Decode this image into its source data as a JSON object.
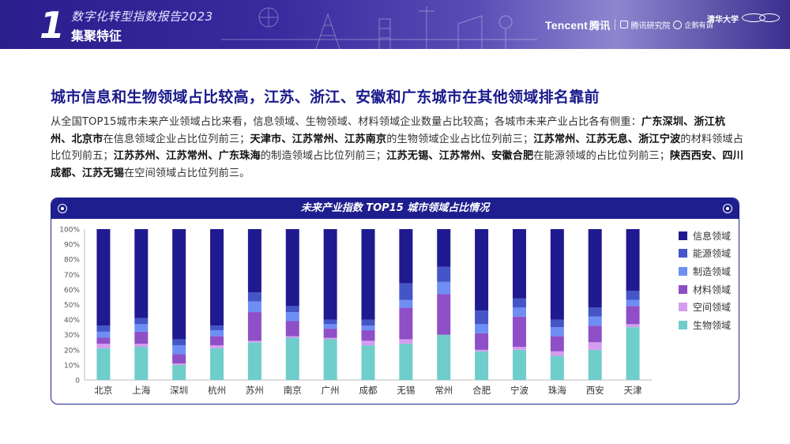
{
  "header": {
    "chapter_number": "1",
    "report_title": "数字化转型指数报告2023",
    "section_title": "集聚特征",
    "logos": {
      "tencent": "Tencent",
      "tencent_cn": "腾讯",
      "research": "腾讯研究院",
      "qie": "企鹅有调",
      "tsinghua": "清华大学"
    }
  },
  "headline": "城市信息和生物领域占比较高，江苏、浙江、安徽和广东城市在其他领域排名靠前",
  "body_segments": [
    {
      "text": "从全国TOP15城市未来产业领域占比来看，信息领域、生物领域、材料领域企业数量占比较高；各城市未来产业占比各有侧重：",
      "bold": false
    },
    {
      "text": "广东深圳、浙江杭州、北京市",
      "bold": true
    },
    {
      "text": "在信息领域企业占比位列前三；",
      "bold": false
    },
    {
      "text": "天津市、江苏常州、江苏南京",
      "bold": true
    },
    {
      "text": "的生物领域企业占比位列前三；",
      "bold": false
    },
    {
      "text": "江苏常州、江苏无息、浙江宁波",
      "bold": true
    },
    {
      "text": "的材料领域占比位列前五；",
      "bold": false
    },
    {
      "text": "江苏苏州、江苏常州、广东珠海",
      "bold": true
    },
    {
      "text": "的制造领域占比位列前三；",
      "bold": false
    },
    {
      "text": "江苏无锡、江苏常州、安徽合肥",
      "bold": true
    },
    {
      "text": "在能源领域的占比位列前三；",
      "bold": false
    },
    {
      "text": "陕西西安、四川成都、江苏无锡",
      "bold": true
    },
    {
      "text": "在空间领域占比位列前三。",
      "bold": false
    }
  ],
  "chart_data": {
    "type": "bar",
    "stacked": true,
    "title": "未来产业指数 TOP15 城市领域占比情况",
    "categories": [
      "北京",
      "上海",
      "深圳",
      "杭州",
      "苏州",
      "南京",
      "广州",
      "成都",
      "无锡",
      "常州",
      "合肥",
      "宁波",
      "珠海",
      "西安",
      "天津"
    ],
    "y_ticks": [
      "0",
      "10%",
      "20%",
      "30%",
      "40%",
      "50%",
      "60%",
      "70%",
      "80%",
      "90%",
      "100%"
    ],
    "ylim": [
      0,
      100
    ],
    "series_order_bottom_to_top": [
      "生物领域",
      "空间领域",
      "材料领域",
      "制造领域",
      "能源领域",
      "信息领域"
    ],
    "series": [
      {
        "name": "生物领域",
        "color": "#6fcdcc",
        "values": [
          21,
          22,
          10,
          21,
          25,
          28,
          27,
          23,
          24,
          30,
          19,
          20,
          16,
          20,
          35
        ]
      },
      {
        "name": "空间领域",
        "color": "#d59cf0",
        "values": [
          3,
          2,
          1,
          2,
          1,
          1,
          1,
          3,
          3,
          0,
          1,
          2,
          3,
          5,
          2
        ]
      },
      {
        "name": "材料领域",
        "color": "#8e4fc7",
        "values": [
          4,
          8,
          6,
          6,
          19,
          10,
          6,
          7,
          21,
          27,
          11,
          20,
          10,
          11,
          12
        ]
      },
      {
        "name": "制造领域",
        "color": "#6e8ef4",
        "values": [
          4,
          5,
          6,
          4,
          7,
          6,
          3,
          3,
          5,
          8,
          6,
          6,
          6,
          6,
          4
        ]
      },
      {
        "name": "能源领域",
        "color": "#4555c8",
        "values": [
          4,
          4,
          4,
          3,
          6,
          4,
          3,
          4,
          11,
          10,
          9,
          6,
          5,
          6,
          6
        ]
      },
      {
        "name": "信息领域",
        "color": "#1f1a90",
        "values": [
          64,
          59,
          73,
          64,
          42,
          51,
          60,
          60,
          36,
          25,
          54,
          46,
          60,
          52,
          41
        ]
      }
    ],
    "legend_order": [
      "信息领域",
      "能源领域",
      "制造领域",
      "材料领域",
      "空间领域",
      "生物领域"
    ],
    "legend_position": "right",
    "grid": false
  }
}
